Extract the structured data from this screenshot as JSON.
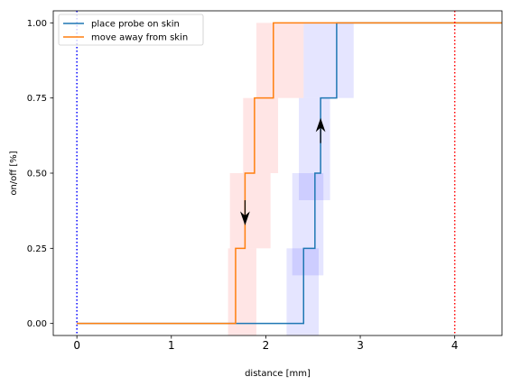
{
  "chart_data": {
    "type": "line",
    "xlabel": "distance [mm]",
    "ylabel": "on/off [%]",
    "xlim": [
      -0.25,
      4.5
    ],
    "ylim": [
      -0.04,
      1.04
    ],
    "x_ticks": [
      {
        "v": 0,
        "label": "0"
      },
      {
        "v": 1,
        "label": "1"
      },
      {
        "v": 2,
        "label": "2"
      },
      {
        "v": 3,
        "label": "3"
      },
      {
        "v": 4,
        "label": "4"
      }
    ],
    "y_ticks": [
      {
        "v": 0,
        "label": "0.00"
      },
      {
        "v": 0.25,
        "label": "0.25"
      },
      {
        "v": 0.5,
        "label": "0.50"
      },
      {
        "v": 0.75,
        "label": "0.75"
      },
      {
        "v": 1,
        "label": "1.00"
      }
    ],
    "legend_position": "top-left",
    "series": [
      {
        "name": "place probe on skin",
        "color": "#1f77b4",
        "points": [
          [
            0,
            0
          ],
          [
            2.4,
            0
          ],
          [
            2.4,
            0.25
          ],
          [
            2.52,
            0.25
          ],
          [
            2.52,
            0.5
          ],
          [
            2.58,
            0.5
          ],
          [
            2.58,
            0.75
          ],
          [
            2.75,
            0.75
          ],
          [
            2.75,
            1
          ],
          [
            4.5,
            1
          ]
        ],
        "bands": [
          {
            "x0": 2.22,
            "x1": 2.56,
            "y0": -0.09,
            "y1": 0.25
          },
          {
            "x0": 2.28,
            "x1": 2.61,
            "y0": 0.16,
            "y1": 0.5
          },
          {
            "x0": 2.35,
            "x1": 2.68,
            "y0": 0.41,
            "y1": 0.75
          },
          {
            "x0": 2.4,
            "x1": 2.93,
            "y0": 0.75,
            "y1": 1.0
          }
        ],
        "band_color": "#0000ff"
      },
      {
        "name": "move away from skin",
        "color": "#ff7f0e",
        "points": [
          [
            0,
            0
          ],
          [
            1.68,
            0
          ],
          [
            1.68,
            0.25
          ],
          [
            1.78,
            0.25
          ],
          [
            1.78,
            0.5
          ],
          [
            1.88,
            0.5
          ],
          [
            1.88,
            0.75
          ],
          [
            2.08,
            0.75
          ],
          [
            2.08,
            1
          ],
          [
            4.5,
            1
          ]
        ],
        "bands": [
          {
            "x0": 1.6,
            "x1": 1.9,
            "y0": -0.09,
            "y1": 0.25
          },
          {
            "x0": 1.62,
            "x1": 2.05,
            "y0": 0.25,
            "y1": 0.5
          },
          {
            "x0": 1.76,
            "x1": 2.13,
            "y0": 0.5,
            "y1": 0.75
          },
          {
            "x0": 1.9,
            "x1": 2.4,
            "y0": 0.75,
            "y1": 1.0
          }
        ],
        "band_color": "#ff0000"
      }
    ],
    "vlines": [
      {
        "x": 0,
        "color": "#0000ff",
        "style": "dotted"
      },
      {
        "x": 4,
        "color": "#ff0000",
        "style": "dotted"
      }
    ],
    "arrows": [
      {
        "x": 2.58,
        "y_from": 0.6,
        "y_to": 0.68,
        "direction": "up"
      },
      {
        "x": 1.78,
        "y_from": 0.41,
        "y_to": 0.33,
        "direction": "down"
      }
    ]
  }
}
